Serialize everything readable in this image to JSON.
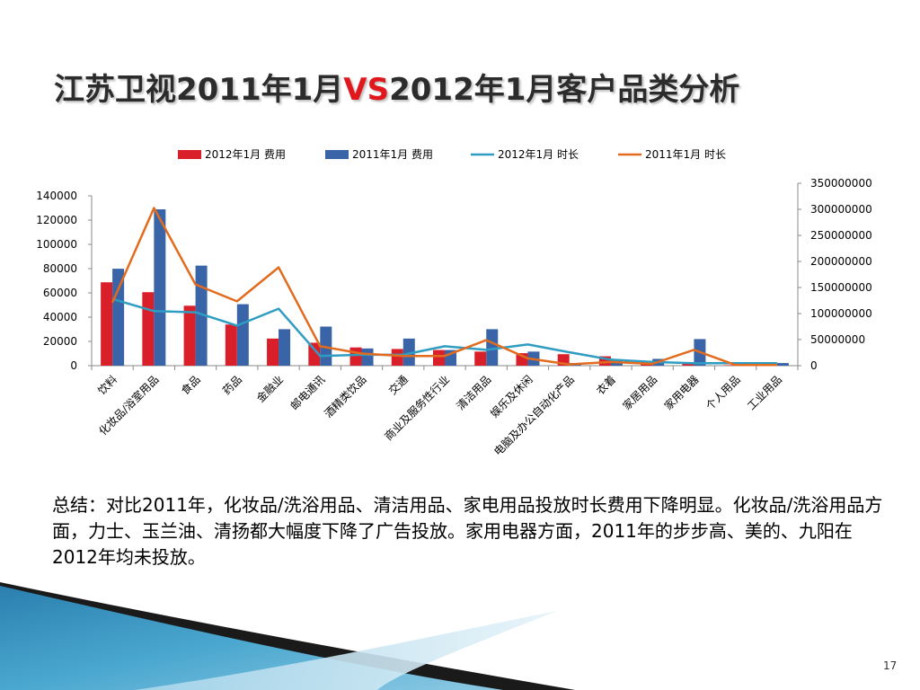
{
  "slide": {
    "title_part1": "江苏卫视2011年1月",
    "title_vs": "VS",
    "title_part2": "2012年1月客户品类分析",
    "summary": "总结：对比2011年，化妆品/洗浴用品、清洁用品、家电用品投放时长费用下降明显。化妆品/洗浴用品方面，力士、玉兰油、清扬都大幅度下降了广告投放。家用电器方面，2011年的步步高、美的、九阳在2012年均未投放。",
    "page_number": "17"
  },
  "chart_data": {
    "type": "bar",
    "categories": [
      "饮料",
      "化妆品/浴室用品",
      "食品",
      "药品",
      "金融业",
      "邮电通讯",
      "酒精类饮品",
      "交通",
      "商业及服务性行业",
      "清洁用品",
      "娱乐及休闲",
      "电脑及办公自动化产品",
      "衣着",
      "家居用品",
      "家用电器",
      "个人用品",
      "工业用品"
    ],
    "y_left": {
      "ticks": [
        0,
        20000,
        40000,
        60000,
        80000,
        100000,
        120000,
        140000
      ],
      "range": [
        0,
        140000
      ]
    },
    "y_right": {
      "ticks": [
        0,
        50000000,
        100000000,
        150000000,
        200000000,
        250000000,
        300000000,
        350000000
      ],
      "range": [
        0,
        350000000
      ]
    },
    "series": [
      {
        "name": "2012年1月 费用",
        "kind": "bar",
        "axis": "right",
        "color": "#d9202a",
        "values": [
          160000000,
          141000000,
          115000000,
          79000000,
          52000000,
          44000000,
          35000000,
          32000000,
          30000000,
          27000000,
          24000000,
          22000000,
          18000000,
          7000000,
          4000000,
          1000000,
          1000000
        ]
      },
      {
        "name": "2011年1月 费用",
        "kind": "bar",
        "axis": "right",
        "color": "#3a64a8",
        "values": [
          186000000,
          300000000,
          192000000,
          118000000,
          70000000,
          75000000,
          33000000,
          52000000,
          30000000,
          70000000,
          27000000,
          5000000,
          12000000,
          13000000,
          51000000,
          5000000,
          5000000
        ]
      },
      {
        "name": "2012年1月 时长",
        "kind": "line",
        "axis": "left",
        "color": "#2f9dc2",
        "values": [
          55000,
          45000,
          44000,
          33000,
          47000,
          8000,
          9000,
          9000,
          16000,
          13000,
          17500,
          11000,
          5000,
          3000,
          2000,
          2000,
          2000
        ]
      },
      {
        "name": "2011年1月 时长",
        "kind": "line",
        "axis": "left",
        "color": "#e26b1e",
        "values": [
          52000,
          130000,
          67000,
          53000,
          81000,
          16000,
          10000,
          8000,
          8000,
          21000,
          6000,
          1000,
          3000,
          1500,
          13000,
          500,
          500
        ]
      }
    ],
    "legend_position": "top",
    "grid": false
  }
}
